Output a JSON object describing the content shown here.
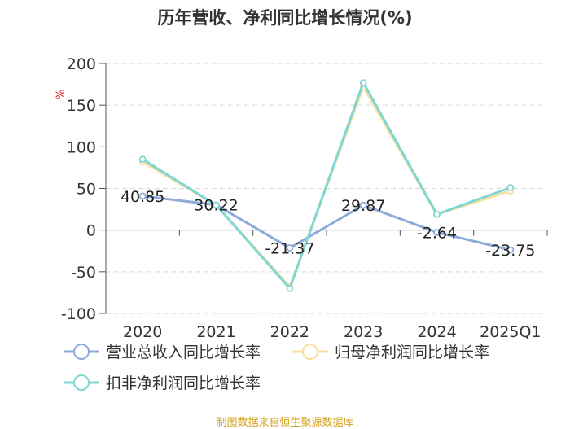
{
  "title": "历年营收、净利同比增长情况(%)",
  "source": "制图数据来自恒生聚源数据库",
  "chart_data": {
    "type": "line",
    "title": "历年营收、净利同比增长情况(%)",
    "ylabel": "%",
    "categories": [
      "2020",
      "2021",
      "2022",
      "2023",
      "2024",
      "2025Q1"
    ],
    "ylim": [
      -100,
      200
    ],
    "yticks": [
      200,
      150,
      100,
      50,
      0,
      -50,
      -100
    ],
    "grid": true,
    "legend_position": "bottom",
    "series": [
      {
        "name": "营业总收入同比增长率",
        "color": "#8eaadb",
        "values": [
          40.85,
          30.22,
          -21.37,
          29.87,
          -2.64,
          -23.75
        ],
        "labels": [
          "40.85",
          "30.22",
          "-21.37",
          "29.87",
          "-2.64",
          "-23.75"
        ]
      },
      {
        "name": "归母净利润同比增长率",
        "color": "#f9dfa0",
        "values": [
          82,
          30,
          -68,
          172,
          19,
          47
        ]
      },
      {
        "name": "扣非净利润同比增长率",
        "color": "#7fd6d3",
        "values": [
          85,
          30,
          -70,
          177,
          19,
          51
        ]
      }
    ]
  }
}
